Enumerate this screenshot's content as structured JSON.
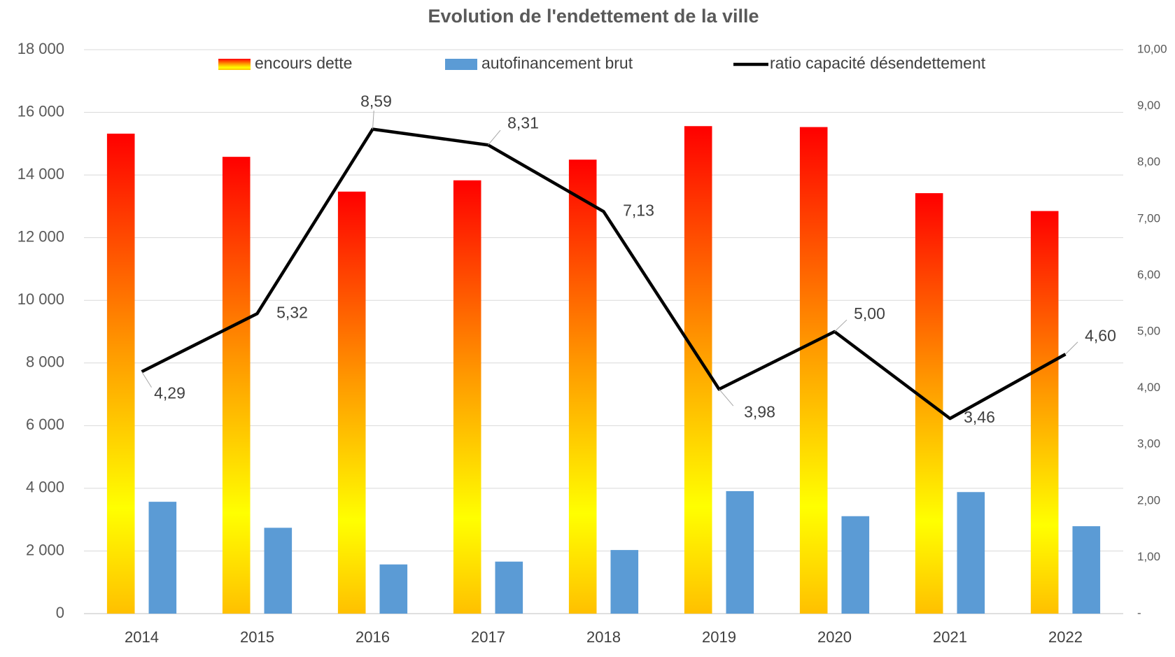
{
  "chart_data": {
    "type": "bar",
    "title": "Evolution de l'endettement de la ville",
    "categories": [
      "2014",
      "2015",
      "2016",
      "2017",
      "2018",
      "2019",
      "2020",
      "2021",
      "2022"
    ],
    "series": [
      {
        "name": "encours dette",
        "color": "#ff0000",
        "values": [
          15320,
          14580,
          13470,
          13830,
          14490,
          15560,
          15530,
          13420,
          12850
        ]
      },
      {
        "name": "autofinancement brut",
        "color": "#5b9bd5",
        "values": [
          3570,
          2740,
          1570,
          1660,
          2030,
          3910,
          3110,
          3880,
          2790
        ]
      },
      {
        "name": "ratio capacité désendettement",
        "type": "line",
        "axis": "y2",
        "color": "#000000",
        "values": [
          4.29,
          5.32,
          8.59,
          8.31,
          7.13,
          3.98,
          5.0,
          3.46,
          4.6
        ],
        "value_labels": [
          "4,29",
          "5,32",
          "8,59",
          "8,31",
          "7,13",
          "3,98",
          "5,00",
          "3,46",
          "4,60"
        ]
      }
    ],
    "ylim": [
      0,
      18000
    ],
    "yticks": [
      {
        "value": 0,
        "label": "0"
      },
      {
        "value": 2000,
        "label": "2 000"
      },
      {
        "value": 4000,
        "label": "4 000"
      },
      {
        "value": 6000,
        "label": "6 000"
      },
      {
        "value": 8000,
        "label": "8 000"
      },
      {
        "value": 10000,
        "label": "10 000"
      },
      {
        "value": 12000,
        "label": "12 000"
      },
      {
        "value": 14000,
        "label": "14 000"
      },
      {
        "value": 16000,
        "label": "16 000"
      },
      {
        "value": 18000,
        "label": "18 000"
      }
    ],
    "y2lim": [
      0,
      10
    ],
    "y2ticks": [
      {
        "value": 0,
        "label": "-"
      },
      {
        "value": 1,
        "label": "1,00"
      },
      {
        "value": 2,
        "label": "2,00"
      },
      {
        "value": 3,
        "label": "3,00"
      },
      {
        "value": 4,
        "label": "4,00"
      },
      {
        "value": 5,
        "label": "5,00"
      },
      {
        "value": 6,
        "label": "6,00"
      },
      {
        "value": 7,
        "label": "7,00"
      },
      {
        "value": 8,
        "label": "8,00"
      },
      {
        "value": 9,
        "label": "9,00"
      },
      {
        "value": 10,
        "label": "10,00"
      }
    ],
    "grid": true,
    "legend": "top"
  }
}
